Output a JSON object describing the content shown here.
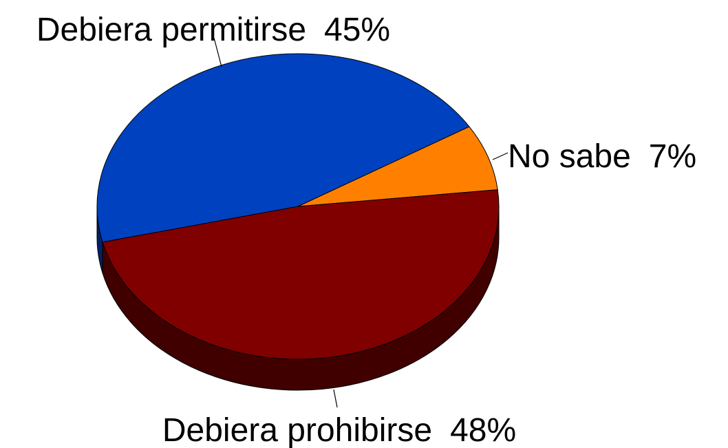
{
  "chart_data": {
    "type": "pie",
    "categories": [
      "Debiera permitirse",
      "No sabe",
      "Debiera prohibirse"
    ],
    "values": [
      45,
      7,
      48
    ],
    "value_labels": [
      "45%",
      "7%",
      "48%"
    ],
    "colors": [
      "#0041c0",
      "#ff8000",
      "#800000"
    ],
    "side_colors": [
      "#00206a",
      "#a05000",
      "#400000"
    ]
  }
}
